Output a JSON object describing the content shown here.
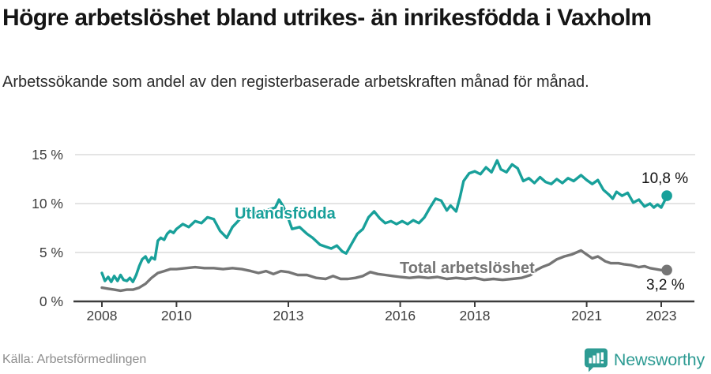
{
  "header": {
    "title": "Högre arbetslöshet bland utrikes- än inrikesfödda i Vaxholm",
    "subtitle": "Arbetssökande som andel av den registerbaserade arbetskraften månad för månad."
  },
  "chart_data": {
    "type": "line",
    "title": "Högre arbetslöshet bland utrikes- än inrikesfödda i Vaxholm",
    "xlabel": "",
    "ylabel": "",
    "unit": "%",
    "grid": true,
    "x_range": [
      2008,
      2023.2
    ],
    "y_range": [
      0,
      15
    ],
    "x_axis": {
      "ticks": [
        {
          "value": 2008,
          "label": "2008"
        },
        {
          "value": 2010,
          "label": "2010"
        },
        {
          "value": 2013,
          "label": "2013"
        },
        {
          "value": 2016,
          "label": "2016"
        },
        {
          "value": 2018,
          "label": "2018"
        },
        {
          "value": 2021,
          "label": "2021"
        },
        {
          "value": 2023,
          "label": "2023"
        }
      ]
    },
    "y_axis": {
      "ticks": [
        {
          "value": 0,
          "label": "0 %"
        },
        {
          "value": 5,
          "label": "5 %"
        },
        {
          "value": 10,
          "label": "10 %"
        },
        {
          "value": 15,
          "label": "15 %"
        }
      ]
    },
    "series": [
      {
        "name": "Utlandsfödda",
        "color": "#18a09a",
        "end_label": "10,8 %",
        "end_value": 10.8,
        "points": [
          [
            2008.0,
            2.9
          ],
          [
            2008.08,
            2.1
          ],
          [
            2008.17,
            2.5
          ],
          [
            2008.25,
            2.0
          ],
          [
            2008.33,
            2.6
          ],
          [
            2008.42,
            2.1
          ],
          [
            2008.5,
            2.7
          ],
          [
            2008.58,
            2.2
          ],
          [
            2008.67,
            2.1
          ],
          [
            2008.75,
            2.4
          ],
          [
            2008.83,
            2.0
          ],
          [
            2008.92,
            2.7
          ],
          [
            2009.0,
            3.6
          ],
          [
            2009.08,
            4.3
          ],
          [
            2009.17,
            4.6
          ],
          [
            2009.25,
            4.0
          ],
          [
            2009.33,
            4.5
          ],
          [
            2009.42,
            4.3
          ],
          [
            2009.5,
            6.2
          ],
          [
            2009.58,
            6.5
          ],
          [
            2009.67,
            6.3
          ],
          [
            2009.75,
            6.9
          ],
          [
            2009.83,
            7.2
          ],
          [
            2009.92,
            7.0
          ],
          [
            2010.0,
            7.4
          ],
          [
            2010.17,
            7.9
          ],
          [
            2010.33,
            7.6
          ],
          [
            2010.5,
            8.2
          ],
          [
            2010.67,
            8.0
          ],
          [
            2010.83,
            8.6
          ],
          [
            2011.0,
            8.4
          ],
          [
            2011.17,
            7.2
          ],
          [
            2011.35,
            6.5
          ],
          [
            2011.5,
            7.6
          ],
          [
            2011.7,
            8.4
          ],
          [
            2011.9,
            9.5
          ],
          [
            2012.1,
            9.0
          ],
          [
            2012.3,
            9.2
          ],
          [
            2012.5,
            9.4
          ],
          [
            2012.65,
            9.6
          ],
          [
            2012.75,
            10.4
          ],
          [
            2012.85,
            9.8
          ],
          [
            2012.95,
            9.0
          ],
          [
            2013.1,
            7.4
          ],
          [
            2013.3,
            7.6
          ],
          [
            2013.5,
            6.9
          ],
          [
            2013.65,
            6.5
          ],
          [
            2013.85,
            5.8
          ],
          [
            2014.0,
            5.6
          ],
          [
            2014.15,
            5.4
          ],
          [
            2014.3,
            5.7
          ],
          [
            2014.45,
            5.1
          ],
          [
            2014.55,
            4.9
          ],
          [
            2014.7,
            5.9
          ],
          [
            2014.85,
            6.9
          ],
          [
            2015.0,
            7.4
          ],
          [
            2015.15,
            8.6
          ],
          [
            2015.3,
            9.2
          ],
          [
            2015.45,
            8.5
          ],
          [
            2015.6,
            8.0
          ],
          [
            2015.75,
            8.2
          ],
          [
            2015.9,
            7.9
          ],
          [
            2016.05,
            8.2
          ],
          [
            2016.2,
            7.9
          ],
          [
            2016.35,
            8.3
          ],
          [
            2016.5,
            8.0
          ],
          [
            2016.65,
            8.6
          ],
          [
            2016.8,
            9.6
          ],
          [
            2016.95,
            10.5
          ],
          [
            2017.1,
            10.3
          ],
          [
            2017.25,
            9.3
          ],
          [
            2017.35,
            9.8
          ],
          [
            2017.5,
            9.2
          ],
          [
            2017.6,
            10.6
          ],
          [
            2017.7,
            12.3
          ],
          [
            2017.85,
            13.1
          ],
          [
            2018.0,
            13.3
          ],
          [
            2018.15,
            13.0
          ],
          [
            2018.3,
            13.7
          ],
          [
            2018.45,
            13.2
          ],
          [
            2018.6,
            14.4
          ],
          [
            2018.7,
            13.5
          ],
          [
            2018.85,
            13.2
          ],
          [
            2019.0,
            14.0
          ],
          [
            2019.15,
            13.6
          ],
          [
            2019.3,
            12.3
          ],
          [
            2019.45,
            12.6
          ],
          [
            2019.6,
            12.1
          ],
          [
            2019.75,
            12.7
          ],
          [
            2019.9,
            12.2
          ],
          [
            2020.05,
            12.0
          ],
          [
            2020.2,
            12.5
          ],
          [
            2020.35,
            12.1
          ],
          [
            2020.5,
            12.6
          ],
          [
            2020.65,
            12.3
          ],
          [
            2020.85,
            12.9
          ],
          [
            2021.0,
            12.4
          ],
          [
            2021.15,
            12.0
          ],
          [
            2021.3,
            12.4
          ],
          [
            2021.45,
            11.4
          ],
          [
            2021.6,
            10.9
          ],
          [
            2021.7,
            10.5
          ],
          [
            2021.8,
            11.2
          ],
          [
            2021.95,
            10.8
          ],
          [
            2022.1,
            11.1
          ],
          [
            2022.25,
            10.1
          ],
          [
            2022.4,
            10.4
          ],
          [
            2022.55,
            9.7
          ],
          [
            2022.7,
            10.0
          ],
          [
            2022.8,
            9.6
          ],
          [
            2022.9,
            9.9
          ],
          [
            2023.0,
            9.6
          ],
          [
            2023.08,
            10.2
          ],
          [
            2023.15,
            10.8
          ]
        ]
      },
      {
        "name": "Total arbetslöshet",
        "color": "#757575",
        "end_label": "3,2 %",
        "end_value": 3.2,
        "points": [
          [
            2008.0,
            1.4
          ],
          [
            2008.17,
            1.3
          ],
          [
            2008.33,
            1.2
          ],
          [
            2008.5,
            1.1
          ],
          [
            2008.67,
            1.2
          ],
          [
            2008.83,
            1.2
          ],
          [
            2009.0,
            1.4
          ],
          [
            2009.17,
            1.8
          ],
          [
            2009.33,
            2.4
          ],
          [
            2009.5,
            2.9
          ],
          [
            2009.67,
            3.1
          ],
          [
            2009.83,
            3.3
          ],
          [
            2010.0,
            3.3
          ],
          [
            2010.25,
            3.4
          ],
          [
            2010.5,
            3.5
          ],
          [
            2010.75,
            3.4
          ],
          [
            2011.0,
            3.4
          ],
          [
            2011.25,
            3.3
          ],
          [
            2011.5,
            3.4
          ],
          [
            2011.75,
            3.3
          ],
          [
            2012.0,
            3.1
          ],
          [
            2012.2,
            2.9
          ],
          [
            2012.4,
            3.1
          ],
          [
            2012.6,
            2.8
          ],
          [
            2012.8,
            3.1
          ],
          [
            2013.0,
            3.0
          ],
          [
            2013.25,
            2.7
          ],
          [
            2013.5,
            2.7
          ],
          [
            2013.75,
            2.4
          ],
          [
            2014.0,
            2.3
          ],
          [
            2014.2,
            2.6
          ],
          [
            2014.4,
            2.3
          ],
          [
            2014.6,
            2.3
          ],
          [
            2014.8,
            2.4
          ],
          [
            2015.0,
            2.6
          ],
          [
            2015.2,
            3.0
          ],
          [
            2015.4,
            2.8
          ],
          [
            2015.6,
            2.7
          ],
          [
            2015.8,
            2.6
          ],
          [
            2016.0,
            2.5
          ],
          [
            2016.25,
            2.4
          ],
          [
            2016.5,
            2.5
          ],
          [
            2016.75,
            2.4
          ],
          [
            2017.0,
            2.5
          ],
          [
            2017.25,
            2.3
          ],
          [
            2017.5,
            2.4
          ],
          [
            2017.75,
            2.3
          ],
          [
            2018.0,
            2.4
          ],
          [
            2018.25,
            2.2
          ],
          [
            2018.5,
            2.3
          ],
          [
            2018.75,
            2.2
          ],
          [
            2019.0,
            2.3
          ],
          [
            2019.25,
            2.4
          ],
          [
            2019.5,
            2.7
          ],
          [
            2019.65,
            3.2
          ],
          [
            2019.8,
            3.5
          ],
          [
            2020.0,
            3.8
          ],
          [
            2020.2,
            4.3
          ],
          [
            2020.4,
            4.6
          ],
          [
            2020.6,
            4.8
          ],
          [
            2020.85,
            5.2
          ],
          [
            2021.0,
            4.8
          ],
          [
            2021.15,
            4.4
          ],
          [
            2021.3,
            4.6
          ],
          [
            2021.5,
            4.1
          ],
          [
            2021.65,
            3.9
          ],
          [
            2021.85,
            3.9
          ],
          [
            2022.0,
            3.8
          ],
          [
            2022.2,
            3.7
          ],
          [
            2022.4,
            3.5
          ],
          [
            2022.55,
            3.6
          ],
          [
            2022.7,
            3.4
          ],
          [
            2022.85,
            3.3
          ],
          [
            2023.0,
            3.2
          ],
          [
            2023.15,
            3.2
          ]
        ]
      }
    ],
    "legend_position": "inline-labels"
  },
  "footer": {
    "source": "Källa: Arbetsförmedlingen",
    "brand": "Newsworthy"
  },
  "colors": {
    "accent_teal": "#18a09a",
    "series_gray": "#757575",
    "grid": "#dcdcdc",
    "axis": "#3c3c3c",
    "brand_teal": "#2d9b93"
  }
}
